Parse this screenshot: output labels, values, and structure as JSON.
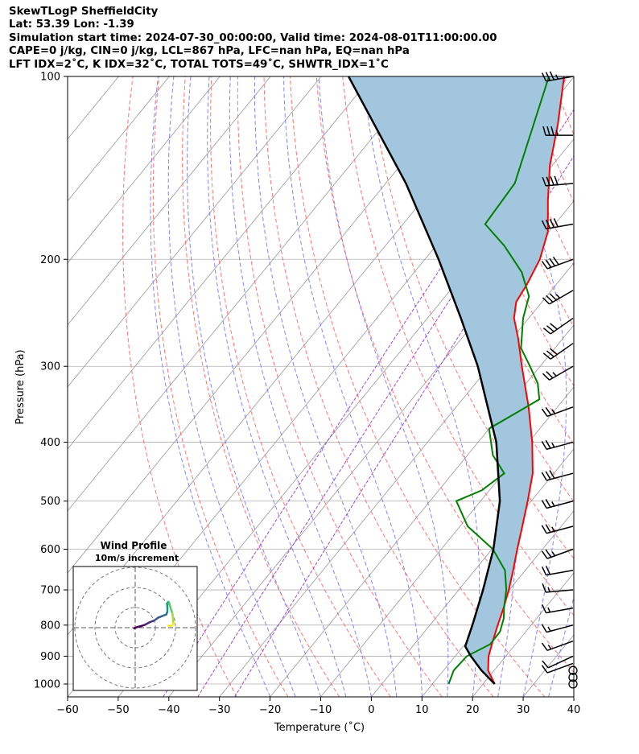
{
  "header": {
    "line1": "SkewTLogP SheffieldCity",
    "line2": "Lat: 53.39   Lon: -1.39",
    "line3": "Simulation start time: 2024-07-30_00:00:00, Valid time: 2024-08-01T11:00:00.00",
    "line4": "CAPE=0 j/kg, CIN=0 j/kg, LCL=867 hPa, LFC=nan hPa, EQ=nan hPa",
    "line5": "LFT IDX=2˚C, K IDX=32˚C, TOTAL TOTS=49˚C, SHWTR_IDX=1˚C"
  },
  "chart_data": [
    {
      "type": "line",
      "chart": "skew-t log-p",
      "xlabel": "Temperature (˚C)",
      "ylabel": "Pressure (hPa)",
      "xlim": [
        -60,
        40
      ],
      "ylim": [
        1050,
        100
      ],
      "y_scale": "log",
      "x_ticks": [
        -60,
        -50,
        -40,
        -30,
        -20,
        -10,
        0,
        10,
        20,
        30,
        40
      ],
      "y_ticks": [
        1000,
        900,
        800,
        700,
        600,
        500,
        400,
        300,
        200,
        100
      ],
      "grid": true,
      "colors": {
        "temperature": "#ff0000",
        "dewpoint": "#008000",
        "parcel": "#000000",
        "cape_fill": "#a3c6df",
        "dry_adiabats": "#ff6666",
        "moist_adiabats": "#6666ff",
        "mixing_ratio": "#9933cc",
        "isotherms": "#999999"
      },
      "series": [
        {
          "key": "temperature",
          "points": [
            [
              1000,
              22.3
            ],
            [
              950,
              18.8
            ],
            [
              900,
              16.6
            ],
            [
              850,
              15.0
            ],
            [
              800,
              13.4
            ],
            [
              750,
              11.8
            ],
            [
              700,
              9.9
            ],
            [
              650,
              7.6
            ],
            [
              600,
              5.0
            ],
            [
              550,
              2.3
            ],
            [
              500,
              -0.7
            ],
            [
              450,
              -4.2
            ],
            [
              400,
              -9.3
            ],
            [
              350,
              -15.7
            ],
            [
              300,
              -23.6
            ],
            [
              270,
              -28.8
            ],
            [
              250,
              -32.9
            ],
            [
              235,
              -35.1
            ],
            [
              220,
              -35.8
            ],
            [
              200,
              -37.3
            ],
            [
              180,
              -40.2
            ],
            [
              160,
              -45.2
            ],
            [
              140,
              -50.5
            ],
            [
              120,
              -55.5
            ],
            [
              100,
              -62.0
            ]
          ]
        },
        {
          "key": "dewpoint",
          "points": [
            [
              1000,
              13.2
            ],
            [
              950,
              12.0
            ],
            [
              900,
              12.3
            ],
            [
              860,
              15.0
            ],
            [
              820,
              14.9
            ],
            [
              780,
              13.5
            ],
            [
              750,
              11.9
            ],
            [
              700,
              9.4
            ],
            [
              650,
              6.0
            ],
            [
              600,
              0.2
            ],
            [
              550,
              -8.5
            ],
            [
              500,
              -14.8
            ],
            [
              480,
              -11.5
            ],
            [
              450,
              -9.8
            ],
            [
              420,
              -15.0
            ],
            [
              380,
              -20.0
            ],
            [
              340,
              -14.8
            ],
            [
              320,
              -17.7
            ],
            [
              300,
              -22.0
            ],
            [
              280,
              -26.7
            ],
            [
              250,
              -31.1
            ],
            [
              230,
              -33.5
            ],
            [
              210,
              -38.8
            ],
            [
              190,
              -46.5
            ],
            [
              175,
              -53.8
            ],
            [
              150,
              -54.5
            ],
            [
              100,
              -65.0
            ]
          ]
        },
        {
          "key": "parcel",
          "points": [
            [
              1000,
              22.3
            ],
            [
              950,
              17.5
            ],
            [
              900,
              13.1
            ],
            [
              867,
              10.4
            ],
            [
              800,
              8.4
            ],
            [
              700,
              4.8
            ],
            [
              600,
              0.3
            ],
            [
              500,
              -6.2
            ],
            [
              400,
              -16.4
            ],
            [
              300,
              -32.3
            ],
            [
              250,
              -43.4
            ],
            [
              200,
              -57.3
            ],
            [
              150,
              -76.0
            ],
            [
              100,
              -104.6
            ]
          ]
        }
      ],
      "wind_barbs_pressure": [
        1000,
        975,
        950,
        925,
        900,
        850,
        800,
        750,
        700,
        650,
        600,
        550,
        500,
        450,
        400,
        350,
        300,
        275,
        250,
        225,
        200,
        175,
        150,
        125,
        100
      ],
      "wind_barbs_speed_kt": [
        0,
        0,
        0,
        10,
        12,
        14,
        15,
        15,
        15,
        20,
        25,
        25,
        25,
        30,
        25,
        25,
        25,
        30,
        30,
        35,
        40,
        40,
        40,
        35,
        35
      ],
      "wind_barbs_direction_deg": [
        0,
        0,
        0,
        250,
        245,
        250,
        255,
        260,
        265,
        260,
        250,
        255,
        255,
        255,
        255,
        250,
        240,
        235,
        235,
        240,
        250,
        260,
        265,
        270,
        260
      ]
    },
    {
      "type": "line",
      "chart": "hodograph",
      "title": "Wind Profile",
      "subtitle": "10m/s increment",
      "rings_ms": [
        10,
        20,
        30
      ],
      "colormap": "viridis",
      "points": [
        [
          -0.5,
          -0.3
        ],
        [
          1.0,
          0.3
        ],
        [
          3.0,
          0.8
        ],
        [
          5.0,
          1.5
        ],
        [
          7.0,
          2.6
        ],
        [
          9.5,
          3.6
        ],
        [
          11.5,
          5.0
        ],
        [
          14.0,
          6.0
        ],
        [
          15.5,
          6.6
        ],
        [
          16.0,
          8.0
        ],
        [
          16.0,
          10.0
        ],
        [
          15.8,
          12.0
        ],
        [
          16.5,
          12.8
        ],
        [
          17.0,
          12.0
        ],
        [
          17.5,
          10.0
        ],
        [
          18.5,
          7.0
        ],
        [
          18.8,
          4.0
        ],
        [
          19.0,
          2.0
        ],
        [
          18.0,
          0.9
        ],
        [
          16.5,
          1.0
        ]
      ]
    }
  ]
}
